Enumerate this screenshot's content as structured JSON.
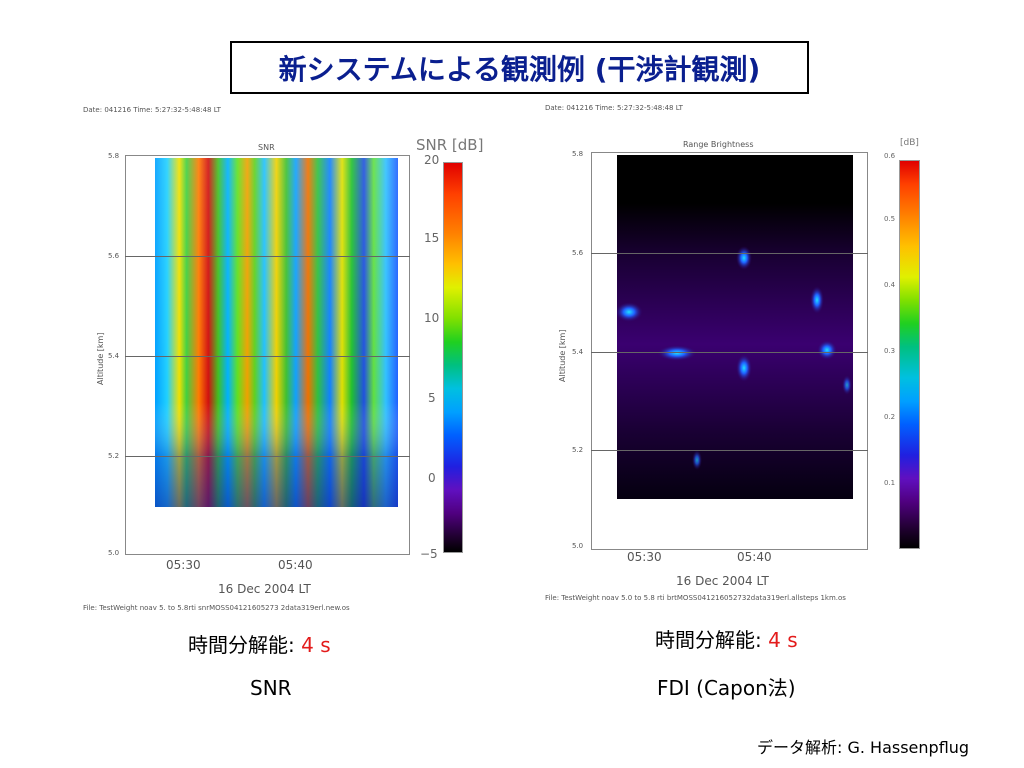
{
  "title": "新システムによる観測例 (干渉計観測)",
  "left": {
    "header": "Date: 041216 Time: 5:27:32-5:48:48 LT",
    "plot_title": "SNR",
    "y_axis_label": "Altitude [km]",
    "y_ticks": [
      "5.8",
      "5.6",
      "5.4",
      "5.2",
      "5.0"
    ],
    "x_ticks": [
      "05:30",
      "05:40"
    ],
    "x_label": "16 Dec 2004 LT",
    "colorbar_label": "SNR [dB]",
    "colorbar_ticks": [
      "20",
      "15",
      "10",
      "5",
      "0",
      "−5"
    ],
    "footer": "File: TestWeight noav 5. to 5.8rti snrMOSS04121605273 2data319erl.new.os",
    "caption_prefix": "時間分解能:",
    "caption_value": "4 s",
    "caption_name": "SNR"
  },
  "right": {
    "header": "Date: 041216 Time: 5:27:32-5:48:48 LT",
    "plot_title": "Range Brightness",
    "y_axis_label": "Altitude [km]",
    "y_ticks": [
      "5.8",
      "5.6",
      "5.4",
      "5.2",
      "5.0"
    ],
    "x_ticks": [
      "05:30",
      "05:40"
    ],
    "x_label": "16 Dec 2004 LT",
    "colorbar_label": "[dB]",
    "colorbar_ticks": [
      "0.6",
      "0.5",
      "0.4",
      "0.3",
      "0.2",
      "0.1"
    ],
    "footer": "File: TestWeight noav 5.0 to 5.8 rti brtMOSS041216052732data319erl.allsteps 1km.os",
    "caption_prefix": "時間分解能:",
    "caption_value": "4 s",
    "caption_name": "FDI (Capon法)"
  },
  "credit": "データ解析: G. Hassenpflug"
}
